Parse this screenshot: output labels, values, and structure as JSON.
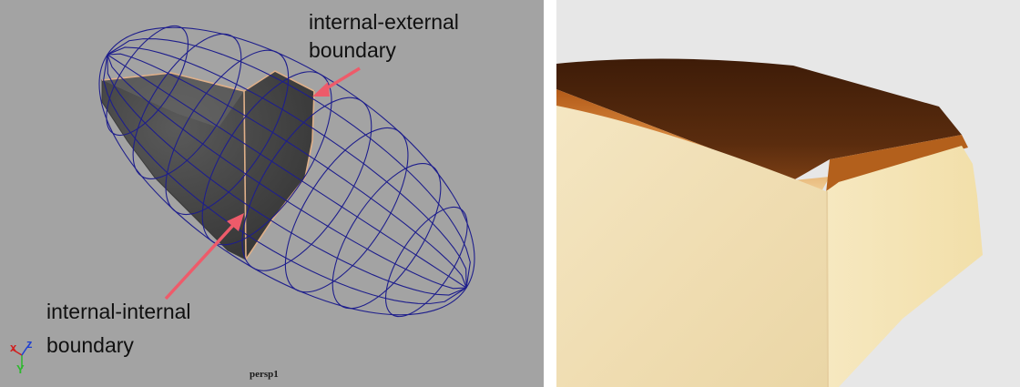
{
  "viewport": {
    "label_external_line1": "internal-external",
    "label_external_line2": "boundary",
    "label_internal_line1": "internal-internal",
    "label_internal_line2": "boundary",
    "camera_name": "persp1",
    "axis_x": "x",
    "axis_y": "Y",
    "axis_z": "z",
    "colors": {
      "background": "#a3a3a3",
      "wireframe": "#1e1e8c",
      "solid_fill": "#4a4a4a",
      "boundary": "#e0b089",
      "arrow": "#ee5b6a"
    }
  },
  "render": {
    "colors": {
      "background": "#e7e7e7",
      "crust": "#4a230b",
      "crumb": "#f2e2b8"
    }
  }
}
